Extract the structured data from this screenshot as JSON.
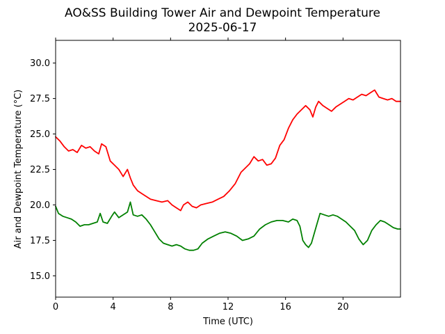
{
  "chart_data": {
    "type": "line",
    "title": "AO&SS Building Tower Air and Dewpoint Temperature",
    "subtitle": "2025-06-17",
    "xlabel": "Time (UTC)",
    "ylabel": "Air and Dewpoint Temperature (°C)",
    "xlim": [
      0,
      24
    ],
    "ylim": [
      13.5,
      31.6
    ],
    "x_ticks": [
      0,
      4,
      8,
      12,
      16,
      20
    ],
    "x_tick_labels": [
      "0",
      "4",
      "8",
      "12",
      "16",
      "20"
    ],
    "y_ticks": [
      15.0,
      17.5,
      20.0,
      22.5,
      25.0,
      27.5,
      30.0
    ],
    "y_tick_labels": [
      "15.0",
      "17.5",
      "20.0",
      "22.5",
      "25.0",
      "27.5",
      "30.0"
    ],
    "grid": false,
    "legend": "none",
    "series": [
      {
        "color": "#ff0000",
        "x": [
          0,
          0.3,
          0.6,
          0.9,
          1.2,
          1.5,
          1.8,
          2.1,
          2.4,
          2.7,
          3.0,
          3.2,
          3.5,
          3.8,
          4.1,
          4.4,
          4.7,
          5.0,
          5.2,
          5.4,
          5.7,
          6.0,
          6.3,
          6.6,
          7.0,
          7.4,
          7.8,
          8.1,
          8.4,
          8.7,
          8.9,
          9.2,
          9.5,
          9.8,
          10.1,
          10.5,
          10.9,
          11.3,
          11.7,
          12.1,
          12.5,
          12.9,
          13.2,
          13.5,
          13.8,
          14.1,
          14.4,
          14.7,
          15.0,
          15.3,
          15.6,
          15.9,
          16.2,
          16.5,
          16.8,
          17.1,
          17.4,
          17.7,
          17.9,
          18.1,
          18.3,
          18.6,
          18.9,
          19.2,
          19.5,
          19.8,
          20.1,
          20.4,
          20.7,
          21.0,
          21.3,
          21.6,
          21.9,
          22.2,
          22.5,
          22.8,
          23.1,
          23.4,
          23.7,
          24.0
        ],
        "values": [
          24.8,
          24.5,
          24.1,
          23.8,
          23.9,
          23.7,
          24.2,
          24.0,
          24.1,
          23.8,
          23.6,
          24.3,
          24.1,
          23.1,
          22.8,
          22.5,
          22.0,
          22.5,
          21.9,
          21.4,
          21.0,
          20.8,
          20.6,
          20.4,
          20.3,
          20.2,
          20.3,
          20.0,
          19.8,
          19.6,
          20.0,
          20.2,
          19.9,
          19.8,
          20.0,
          20.1,
          20.2,
          20.4,
          20.6,
          21.0,
          21.5,
          22.3,
          22.6,
          22.9,
          23.4,
          23.1,
          23.2,
          22.8,
          22.9,
          23.3,
          24.2,
          24.6,
          25.4,
          26.0,
          26.4,
          26.7,
          27.0,
          26.7,
          26.2,
          26.9,
          27.3,
          27.0,
          26.8,
          26.6,
          26.9,
          27.1,
          27.3,
          27.5,
          27.4,
          27.6,
          27.8,
          27.7,
          27.9,
          28.1,
          27.6,
          27.5,
          27.4,
          27.5,
          27.3,
          27.3
        ]
      },
      {
        "color": "#008000",
        "x": [
          0,
          0.2,
          0.5,
          0.8,
          1.1,
          1.4,
          1.7,
          2.0,
          2.3,
          2.6,
          2.9,
          3.1,
          3.3,
          3.6,
          3.9,
          4.1,
          4.4,
          4.7,
          5.0,
          5.2,
          5.4,
          5.7,
          6.0,
          6.3,
          6.6,
          6.9,
          7.2,
          7.5,
          7.8,
          8.1,
          8.4,
          8.7,
          9.0,
          9.3,
          9.6,
          9.9,
          10.2,
          10.6,
          11.0,
          11.4,
          11.8,
          12.2,
          12.6,
          13.0,
          13.4,
          13.8,
          14.2,
          14.6,
          15.0,
          15.4,
          15.8,
          16.2,
          16.5,
          16.8,
          17.0,
          17.2,
          17.4,
          17.6,
          17.8,
          18.0,
          18.2,
          18.4,
          18.7,
          19.0,
          19.3,
          19.6,
          19.9,
          20.2,
          20.5,
          20.8,
          21.1,
          21.4,
          21.7,
          22.0,
          22.3,
          22.6,
          22.9,
          23.2,
          23.5,
          23.8,
          24.0
        ],
        "values": [
          19.9,
          19.4,
          19.2,
          19.1,
          19.0,
          18.8,
          18.5,
          18.6,
          18.6,
          18.7,
          18.8,
          19.4,
          18.8,
          18.7,
          19.2,
          19.5,
          19.1,
          19.3,
          19.5,
          20.2,
          19.3,
          19.2,
          19.3,
          19.0,
          18.6,
          18.1,
          17.6,
          17.3,
          17.2,
          17.1,
          17.2,
          17.1,
          16.9,
          16.8,
          16.8,
          16.9,
          17.3,
          17.6,
          17.8,
          18.0,
          18.1,
          18.0,
          17.8,
          17.5,
          17.6,
          17.8,
          18.3,
          18.6,
          18.8,
          18.9,
          18.9,
          18.8,
          19.0,
          18.9,
          18.5,
          17.5,
          17.2,
          17.0,
          17.3,
          18.0,
          18.7,
          19.4,
          19.3,
          19.2,
          19.3,
          19.2,
          19.0,
          18.8,
          18.5,
          18.2,
          17.6,
          17.2,
          17.5,
          18.2,
          18.6,
          18.9,
          18.8,
          18.6,
          18.4,
          18.3,
          18.3
        ]
      }
    ]
  }
}
